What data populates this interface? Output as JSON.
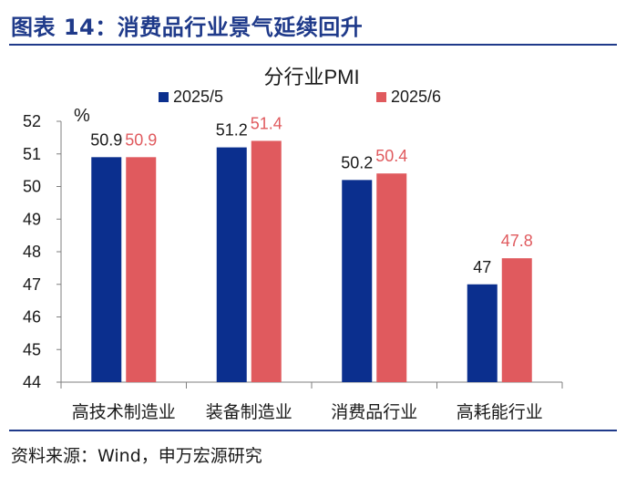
{
  "figure": {
    "title": "图表 14：消费品行业景气延续回升",
    "source": "资料来源：Wind，申万宏源研究"
  },
  "chart_data": {
    "type": "bar",
    "title": "分行业PMI",
    "ylabel": "%",
    "xlabel": "",
    "ylim": [
      44,
      52
    ],
    "yticks": [
      44,
      45,
      46,
      47,
      48,
      49,
      50,
      51,
      52
    ],
    "grid": false,
    "legend_position": "top",
    "categories": [
      "高技术制造业",
      "装备制造业",
      "消费品行业",
      "高耗能行业"
    ],
    "series": [
      {
        "name": "2025/5",
        "color": "#0b2f8e",
        "label_color": "#1a1a1a",
        "values": [
          50.9,
          51.2,
          50.2,
          47
        ],
        "labels": [
          "50.9",
          "51.2",
          "50.2",
          "47"
        ]
      },
      {
        "name": "2025/6",
        "color": "#e05a5e",
        "label_color": "#e05a5e",
        "values": [
          50.9,
          51.4,
          50.4,
          47.8
        ],
        "labels": [
          "50.9",
          "51.4",
          "50.4",
          "47.8"
        ]
      }
    ]
  }
}
